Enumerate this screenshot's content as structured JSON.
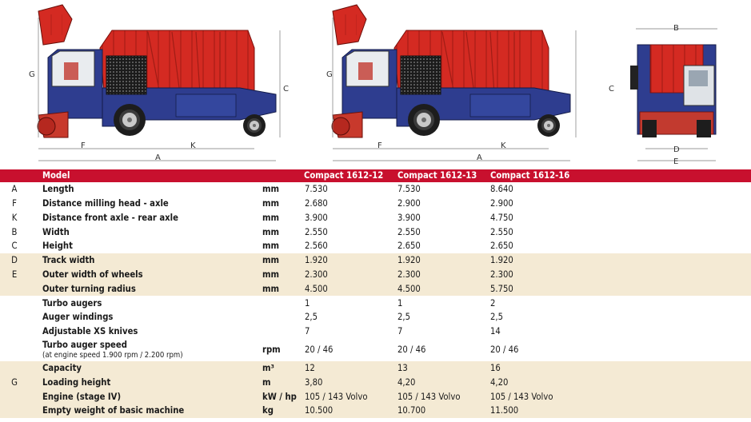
{
  "drawings": {
    "side1_labels": {
      "g": "G",
      "c": "C",
      "f": "F",
      "k": "K",
      "a": "A"
    },
    "side2_labels": {
      "g": "G",
      "c": "C",
      "f": "F",
      "k": "K",
      "a": "A"
    },
    "front_labels": {
      "b": "B",
      "d": "D",
      "e": "E"
    },
    "colors": {
      "body_red": "#d42a22",
      "cab_blue": "#2e3d8f",
      "accent": "#c8102e",
      "row_shade": "#f4ead4"
    }
  },
  "table": {
    "header": {
      "model": "Model",
      "models": [
        "Compact 1612-12",
        "Compact 1612-13",
        "Compact 1612-16"
      ]
    },
    "rows": [
      {
        "letter": "A",
        "label": "Length",
        "sub": "",
        "unit": "mm",
        "values": [
          "7.530",
          "7.530",
          "8.640"
        ],
        "shade": false
      },
      {
        "letter": "F",
        "label": "Distance milling head - axle",
        "sub": "",
        "unit": "mm",
        "values": [
          "2.680",
          "2.900",
          "2.900"
        ],
        "shade": false
      },
      {
        "letter": "K",
        "label": "Distance front axle - rear axle",
        "sub": "",
        "unit": "mm",
        "values": [
          "3.900",
          "3.900",
          "4.750"
        ],
        "shade": false
      },
      {
        "letter": "B",
        "label": "Width",
        "sub": "",
        "unit": "mm",
        "values": [
          "2.550",
          "2.550",
          "2.550"
        ],
        "shade": false
      },
      {
        "letter": "C",
        "label": "Height",
        "sub": "",
        "unit": "mm",
        "values": [
          "2.560",
          "2.650",
          "2.650"
        ],
        "shade": false
      },
      {
        "letter": "D",
        "label": "Track width",
        "sub": "",
        "unit": "mm",
        "values": [
          "1.920",
          "1.920",
          "1.920"
        ],
        "shade": true
      },
      {
        "letter": "E",
        "label": "Outer width of wheels",
        "sub": "",
        "unit": "mm",
        "values": [
          "2.300",
          "2.300",
          "2.300"
        ],
        "shade": true
      },
      {
        "letter": "",
        "label": "Outer turning radius",
        "sub": "",
        "unit": "mm",
        "values": [
          "4.500",
          "4.500",
          "5.750"
        ],
        "shade": true
      },
      {
        "letter": "",
        "label": "Turbo augers",
        "sub": "",
        "unit": "",
        "values": [
          "1",
          "1",
          "2"
        ],
        "shade": false
      },
      {
        "letter": "",
        "label": "Auger windings",
        "sub": "",
        "unit": "",
        "values": [
          "2,5",
          "2,5",
          "2,5"
        ],
        "shade": false
      },
      {
        "letter": "",
        "label": "Adjustable XS knives",
        "sub": "",
        "unit": "",
        "values": [
          "7",
          "7",
          "14"
        ],
        "shade": false
      },
      {
        "letter": "",
        "label": "Turbo auger speed",
        "sub": "(at engine speed 1.900 rpm / 2.200 rpm)",
        "unit": "rpm",
        "values": [
          "20 / 46",
          "20 / 46",
          "20 / 46"
        ],
        "shade": false,
        "tall": true
      },
      {
        "letter": "",
        "label": "Capacity",
        "sub": "",
        "unit": "m³",
        "values": [
          "12",
          "13",
          "16"
        ],
        "shade": true
      },
      {
        "letter": "G",
        "label": "Loading height",
        "sub": "",
        "unit": "m",
        "values": [
          "3,80",
          "4,20",
          "4,20"
        ],
        "shade": true
      },
      {
        "letter": "",
        "label": "Engine (stage IV)",
        "sub": "",
        "unit": "kW / hp",
        "values": [
          "105 / 143 Volvo",
          "105 / 143 Volvo",
          "105 / 143 Volvo"
        ],
        "shade": true
      },
      {
        "letter": "",
        "label": "Empty weight of basic machine",
        "sub": "",
        "unit": "kg",
        "values": [
          "10.500",
          "10.700",
          "11.500"
        ],
        "shade": true
      }
    ]
  }
}
